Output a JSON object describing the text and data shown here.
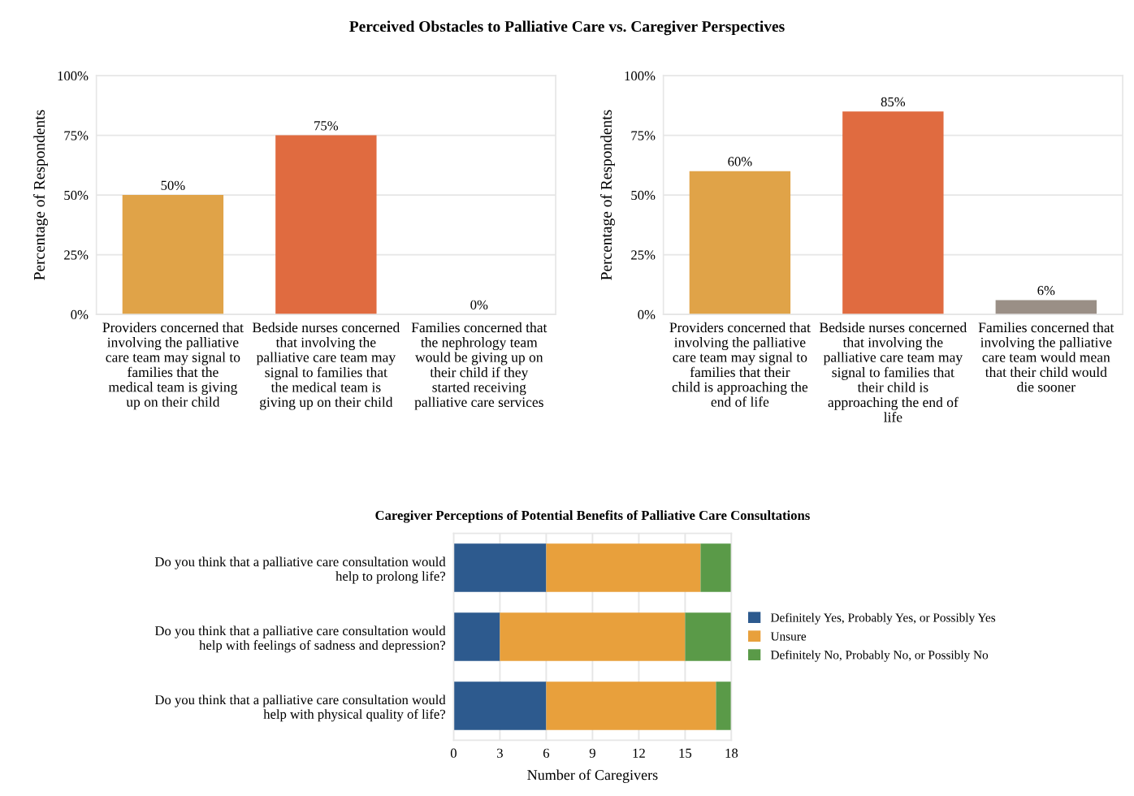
{
  "chart_data": [
    {
      "type": "bar",
      "title": "Perceived Obstacles to Palliative Care vs. Caregiver Perspectives",
      "ylabel": "Percentage of Respondents",
      "categories": [
        "Providers concerned that involving the palliative care team may signal to families that the medical team is giving up on their child",
        "Bedside nurses concerned that involving the palliative care team may signal to families that the medical team is giving up on their child",
        "Families concerned that the nephrology team would be giving up on their child if they started receiving palliative care services"
      ],
      "values": [
        50,
        75,
        0
      ],
      "colors": [
        "#e0a348",
        "#e06b40",
        "#9a8f86"
      ],
      "value_labels": [
        "50%",
        "75%",
        "0%"
      ],
      "ylim": [
        0,
        100
      ],
      "yticks": [
        {
          "value": 0,
          "label": "0%"
        },
        {
          "value": 25,
          "label": "25%"
        },
        {
          "value": 50,
          "label": "50%"
        },
        {
          "value": 75,
          "label": "75%"
        },
        {
          "value": 100,
          "label": "100%"
        }
      ],
      "grid": "y",
      "legend": false
    },
    {
      "type": "bar",
      "ylabel": "Percentage of Respondents",
      "categories": [
        "Providers concerned that involving the palliative care team may signal to families that their child is approaching the end of life",
        "Bedside nurses concerned that involving the palliative care team may signal to families that their child is approaching the end of life",
        "Families concerned that involving the palliative care team would mean that their child would die sooner"
      ],
      "values": [
        60,
        85,
        6
      ],
      "colors": [
        "#e0a348",
        "#e06b40",
        "#9a8f86"
      ],
      "value_labels": [
        "60%",
        "85%",
        "6%"
      ],
      "ylim": [
        0,
        100
      ],
      "yticks": [
        {
          "value": 0,
          "label": "0%"
        },
        {
          "value": 25,
          "label": "25%"
        },
        {
          "value": 50,
          "label": "50%"
        },
        {
          "value": 75,
          "label": "75%"
        },
        {
          "value": 100,
          "label": "100%"
        }
      ],
      "grid": "y",
      "legend": false
    },
    {
      "type": "bar",
      "orientation": "horizontal",
      "stacked": true,
      "title": "Caregiver Perceptions of Potential Benefits of Palliative Care Consultations",
      "xlabel": "Number of Caregivers",
      "categories": [
        "Do you think that a palliative care consultation would help to prolong life?",
        "Do you think that a palliative care consultation would help with feelings of sadness and depression?",
        "Do you think that a palliative care consultation would help with physical quality of life?"
      ],
      "series": [
        {
          "name": "Definitely Yes, Probably Yes, or Possibly Yes",
          "color": "#2d5a8e",
          "values": [
            6,
            3,
            6
          ]
        },
        {
          "name": "Unsure",
          "color": "#e8a03c",
          "values": [
            10,
            12,
            11
          ]
        },
        {
          "name": "Definitely No, Probably No, or Possibly No",
          "color": "#5a9a48",
          "values": [
            2,
            3,
            1
          ]
        }
      ],
      "xlim": [
        0,
        18
      ],
      "xticks": [
        0,
        3,
        6,
        9,
        12,
        15,
        18
      ],
      "grid": "x",
      "legend": "right"
    }
  ]
}
